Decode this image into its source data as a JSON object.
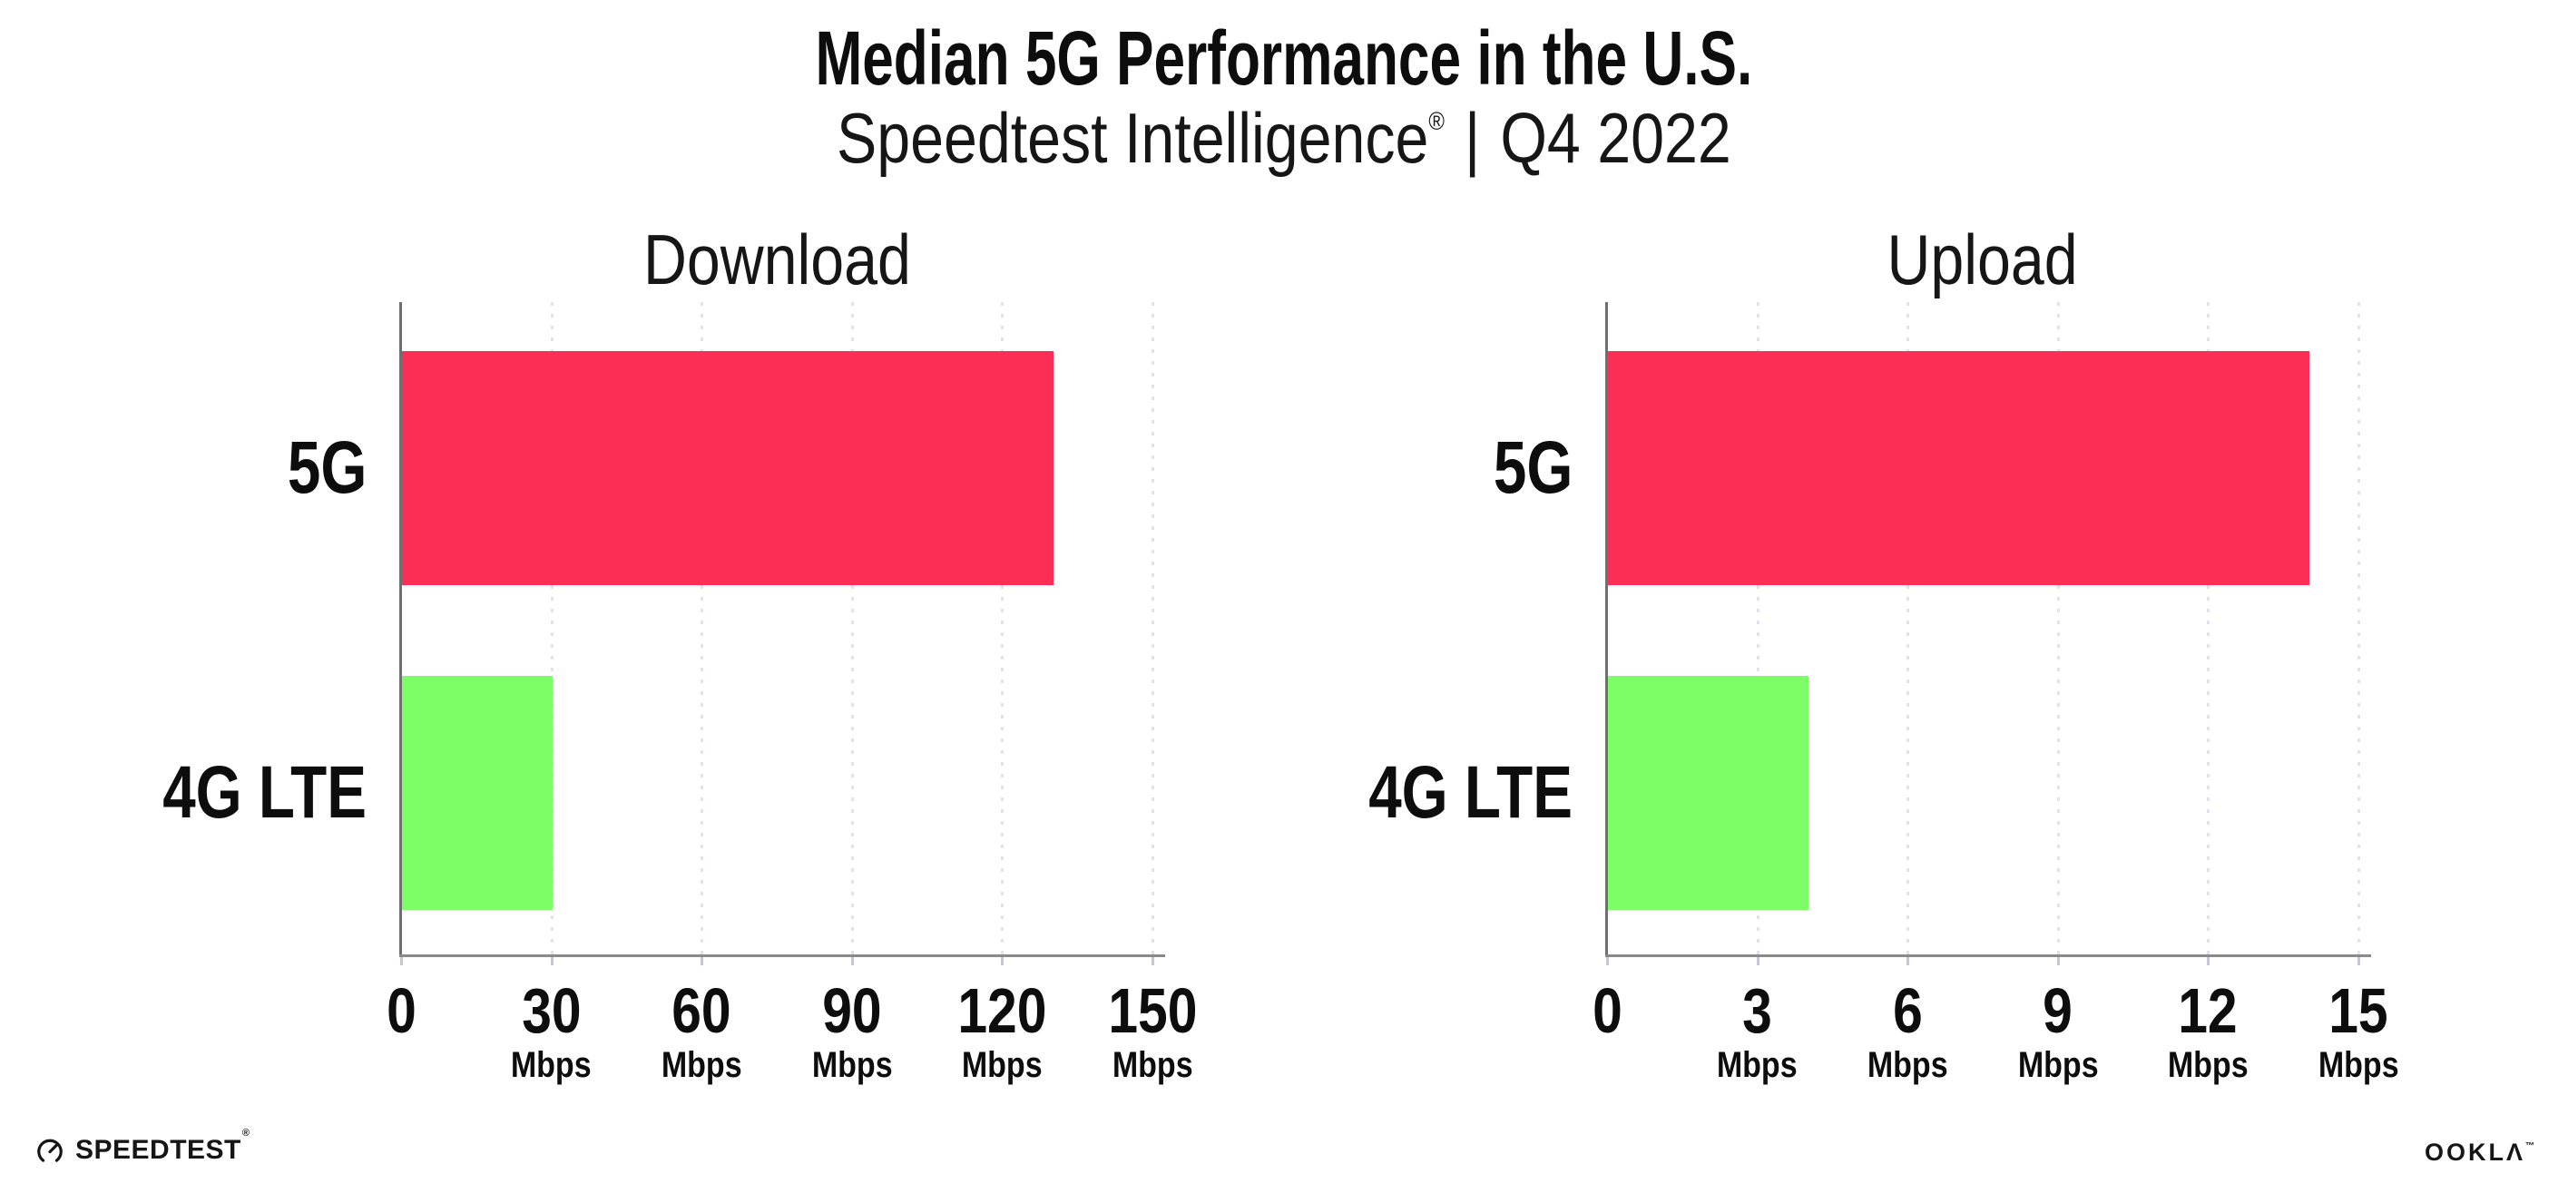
{
  "header": {
    "title": "Median 5G Performance in the U.S.",
    "subtitle": {
      "brand": "Speedtest Intelligence",
      "registered_mark": "®",
      "separator": "|",
      "period": "Q4 2022"
    }
  },
  "chart_data": [
    {
      "type": "bar",
      "orientation": "horizontal",
      "title": "Download",
      "categories": [
        "5G",
        "4G LTE"
      ],
      "values": [
        130,
        30
      ],
      "unit": "Mbps",
      "xlim": [
        0,
        150
      ],
      "xticks": [
        0,
        30,
        60,
        90,
        120,
        150
      ],
      "tick_unit_label": "Mbps",
      "grid": "dotted-vertical-light",
      "legend": "none",
      "bar_colors": {
        "5G": "#FC2E56",
        "4G LTE": "#7DFD66"
      }
    },
    {
      "type": "bar",
      "orientation": "horizontal",
      "title": "Upload",
      "categories": [
        "5G",
        "4G LTE"
      ],
      "values": [
        14,
        4
      ],
      "unit": "Mbps",
      "xlim": [
        0,
        15
      ],
      "xticks": [
        0,
        3,
        6,
        9,
        12,
        15
      ],
      "tick_unit_label": "Mbps",
      "grid": "dotted-vertical-light",
      "legend": "none",
      "bar_colors": {
        "5G": "#FC2E56",
        "4G LTE": "#7DFD66"
      }
    }
  ],
  "footer": {
    "speedtest": {
      "icon": "speedtest-gauge-icon",
      "label": "SPEEDTEST",
      "mark": "®"
    },
    "ookla": {
      "label": "OOKLΛ",
      "mark": "™"
    }
  },
  "colors": {
    "bar_5g": "#FC2E56",
    "bar_4g_lte": "#7DFD66",
    "gridline": "#E2E2EC",
    "axis": "#8A8A8A",
    "text": "#0D0D0D",
    "background": "#FFFFFF"
  }
}
